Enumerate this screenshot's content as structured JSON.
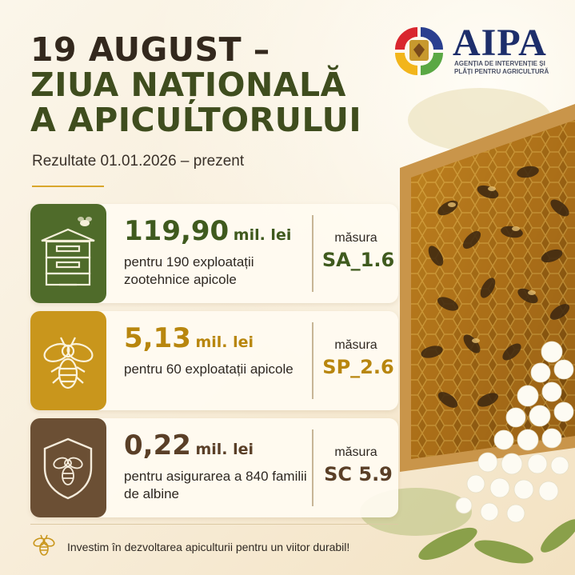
{
  "header": {
    "title_line1": "19 AUGUST –",
    "title_line2": "ZIUA NAȚIONALĂ",
    "title_line3": "A APICULTORULUI",
    "subtitle": "Rezultate 01.01.2026 – prezent"
  },
  "logo": {
    "name": "AIPA",
    "subtitle_line1": "AGENȚIA DE INTERVENȚIE ȘI",
    "subtitle_line2": "PLĂȚI PENTRU AGRICULTURĂ"
  },
  "cards": [
    {
      "amount": "119,90",
      "unit": "mil. lei",
      "description": "pentru 190 exploatații zootehnice apicole",
      "measure_label": "măsura",
      "measure_code": "SA_1.6",
      "icon": "beehive-icon",
      "color": "#4f6b2a"
    },
    {
      "amount": "5,13",
      "unit": "mil. lei",
      "description": "pentru 60 exploatații apicole",
      "measure_label": "măsura",
      "measure_code": "SP_2.6",
      "icon": "bee-icon",
      "color": "#c9961c"
    },
    {
      "amount": "0,22",
      "unit": "mil. lei",
      "description": "pentru asigurarea a 840 familii de albine",
      "measure_label": "măsura",
      "measure_code": "SC 5.9",
      "icon": "shield-bee-icon",
      "color": "#6b4f34"
    }
  ],
  "footer": {
    "text": "Investim în dezvoltarea apiculturii pentru un viitor durabil!",
    "icon": "bee-icon"
  }
}
